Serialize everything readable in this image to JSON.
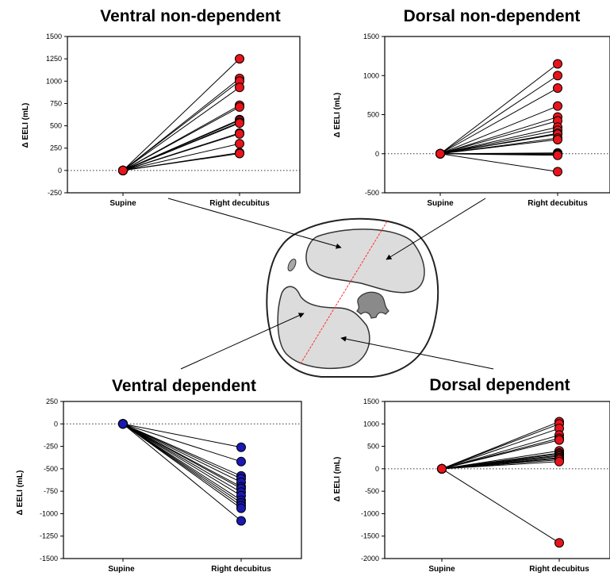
{
  "chart_data": [
    {
      "type": "line",
      "title": "Ventral non-dependent",
      "ylabel": "Δ EELI (mL)",
      "categories": [
        "Supine",
        "Right decubitus"
      ],
      "ylim": [
        -250,
        1500
      ],
      "yticks": [
        -250,
        0,
        250,
        500,
        750,
        1000,
        1250,
        1500
      ],
      "marker_color": "#e8141b",
      "reference_line": 0,
      "start_values": [
        0,
        0,
        0,
        0,
        0,
        0,
        0,
        0,
        0,
        0,
        0,
        0,
        0,
        0,
        0
      ],
      "end_values": [
        1250,
        1030,
        1000,
        930,
        730,
        710,
        570,
        560,
        540,
        530,
        420,
        410,
        300,
        200,
        190
      ]
    },
    {
      "type": "line",
      "title": "Dorsal non-dependent",
      "ylabel": "Δ EELI (mL)",
      "categories": [
        "Supine",
        "Right decubitus"
      ],
      "ylim": [
        -500,
        1500
      ],
      "yticks": [
        -500,
        0,
        500,
        1000,
        1500
      ],
      "marker_color": "#e8141b",
      "reference_line": 0,
      "start_values": [
        0,
        0,
        0,
        0,
        0,
        0,
        0,
        0,
        0,
        0,
        0,
        0,
        0,
        0,
        0,
        0,
        0
      ],
      "end_values": [
        1150,
        1000,
        840,
        610,
        470,
        420,
        340,
        300,
        260,
        250,
        200,
        180,
        10,
        0,
        -10,
        -20,
        -230
      ]
    },
    {
      "type": "line",
      "title": "Ventral dependent",
      "ylabel": "Δ EELI (mL)",
      "categories": [
        "Supine",
        "Right decubitus"
      ],
      "ylim": [
        -1500,
        250
      ],
      "yticks": [
        -1500,
        -1250,
        -1000,
        -750,
        -500,
        -250,
        0,
        250
      ],
      "marker_color": "#1a19b3",
      "reference_line": 0,
      "start_values": [
        0,
        0,
        0,
        0,
        0,
        0,
        0,
        0,
        0,
        0,
        0,
        0,
        0,
        0
      ],
      "end_values": [
        -260,
        -420,
        -580,
        -610,
        -650,
        -700,
        -720,
        -760,
        -800,
        -850,
        -880,
        -910,
        -940,
        -1080
      ]
    },
    {
      "type": "line",
      "title": "Dorsal dependent",
      "ylabel": "Δ EELI (mL)",
      "categories": [
        "Supine",
        "Right decubitus"
      ],
      "ylim": [
        -2000,
        1500
      ],
      "yticks": [
        -2000,
        -1500,
        -1000,
        -500,
        0,
        500,
        1000,
        1500
      ],
      "marker_color": "#e8141b",
      "reference_line": 0,
      "start_values": [
        0,
        0,
        0,
        0,
        0,
        0,
        0,
        0,
        0,
        0,
        0,
        0,
        0,
        0,
        0,
        0
      ],
      "end_values": [
        1050,
        1000,
        900,
        750,
        680,
        640,
        400,
        350,
        330,
        300,
        280,
        250,
        230,
        200,
        160,
        -1650
      ]
    }
  ],
  "diagram": {
    "lung_fill": "#dcdcdc",
    "divider_color": "#ff3030",
    "name": "thorax-cross-section"
  }
}
